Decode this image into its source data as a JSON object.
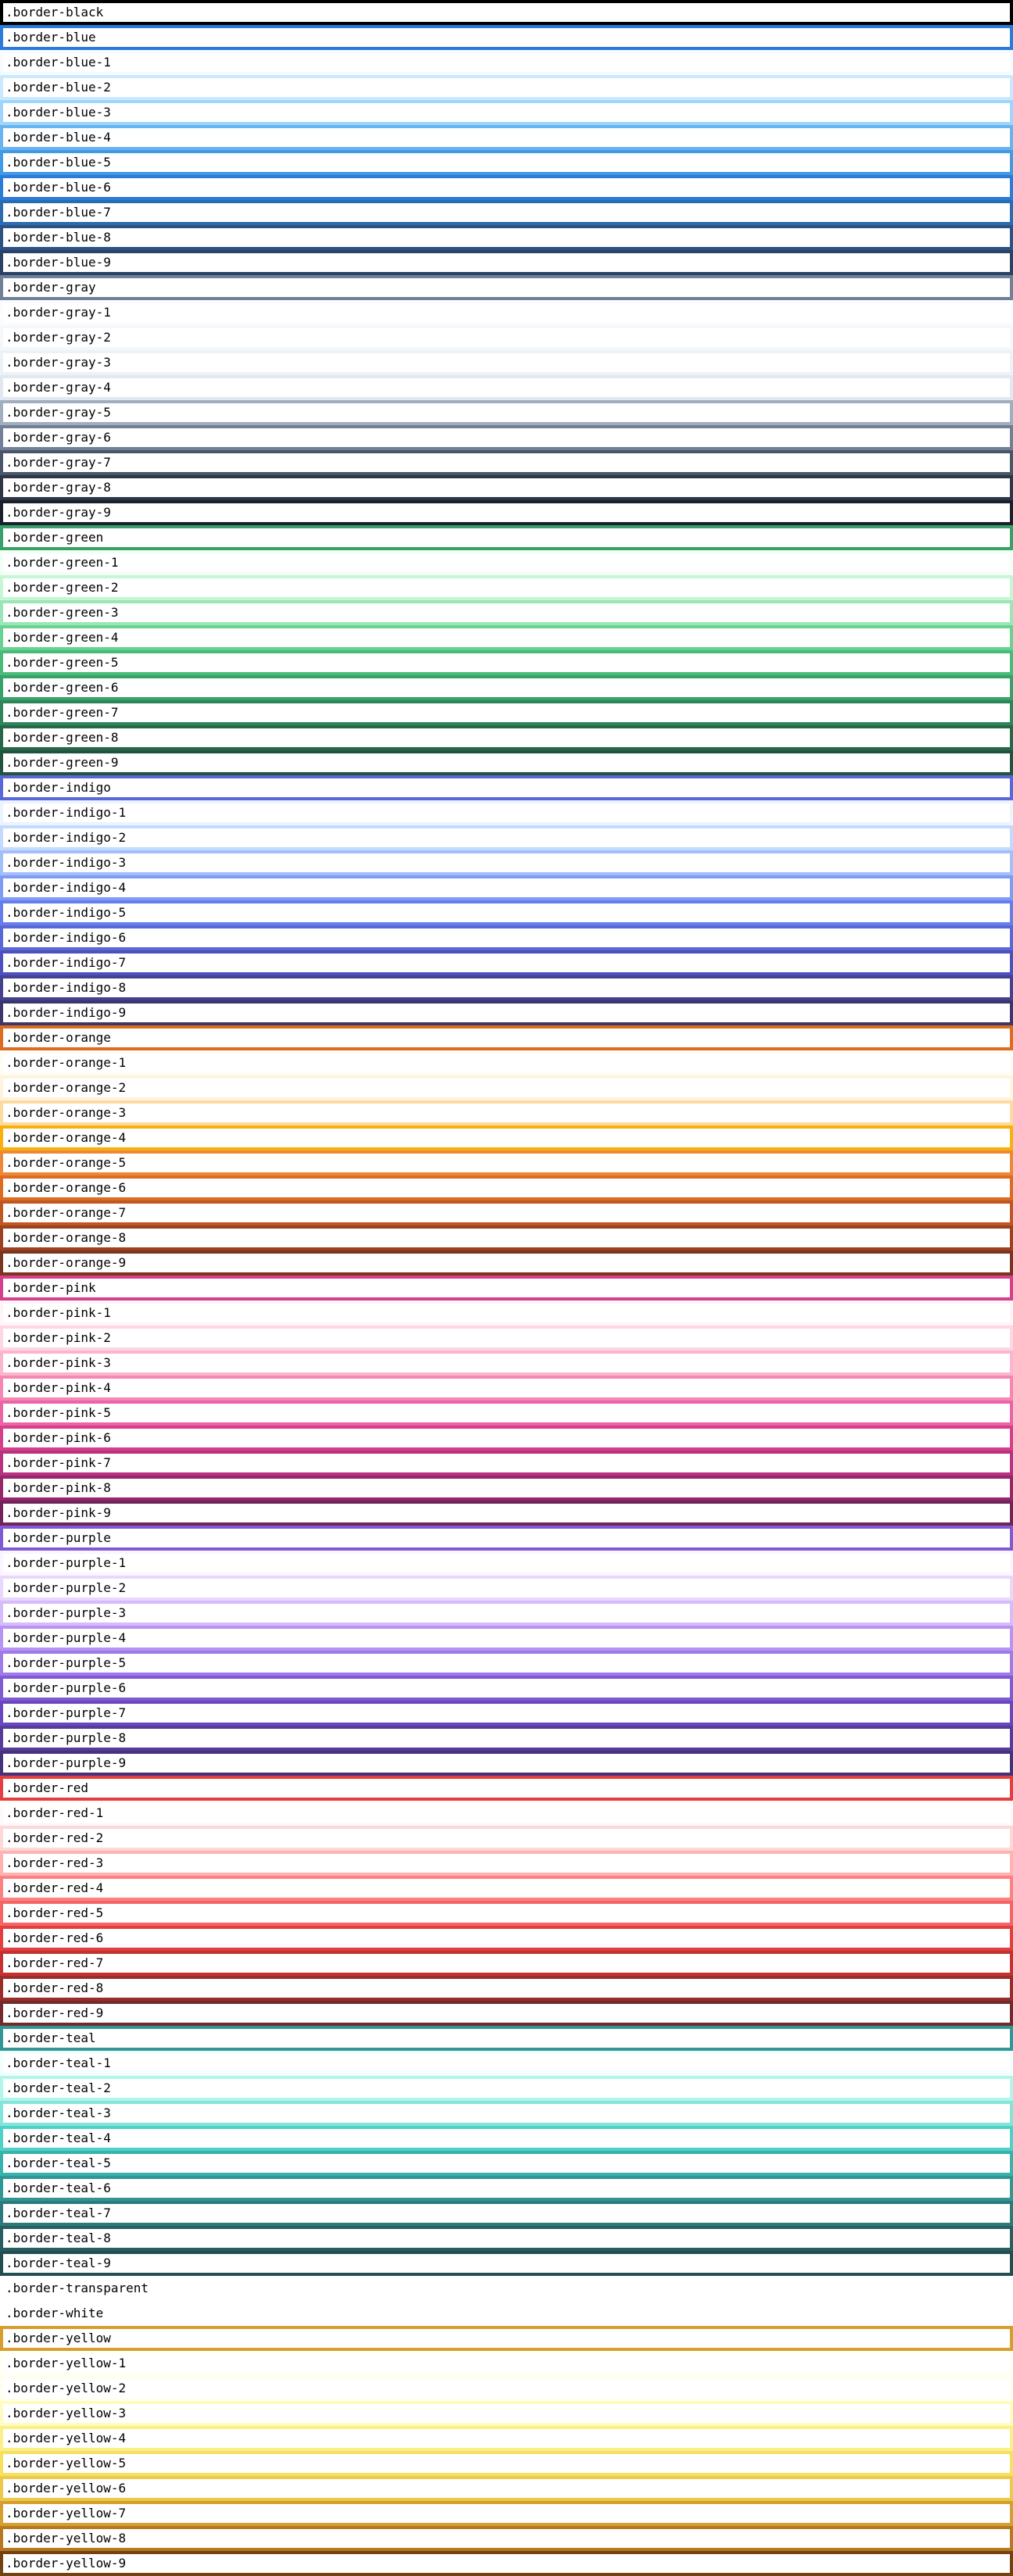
{
  "items": [
    {
      "label": ".border-black",
      "color": "#000000"
    },
    {
      "label": ".border-blue",
      "color": "#2b7bdb"
    },
    {
      "label": ".border-blue-1",
      "color": "#f5fbff"
    },
    {
      "label": ".border-blue-2",
      "color": "#cbe9fe"
    },
    {
      "label": ".border-blue-3",
      "color": "#9fd5fc"
    },
    {
      "label": ".border-blue-4",
      "color": "#69b4ef"
    },
    {
      "label": ".border-blue-5",
      "color": "#4299e4"
    },
    {
      "label": ".border-blue-6",
      "color": "#2b7bdb"
    },
    {
      "label": ".border-blue-7",
      "color": "#2b6bb0"
    },
    {
      "label": ".border-blue-8",
      "color": "#2c5283"
    },
    {
      "label": ".border-blue-9",
      "color": "#2a4365"
    },
    {
      "label": ".border-gray",
      "color": "#718096"
    },
    {
      "label": ".border-gray-1",
      "color": "#fbfcfd"
    },
    {
      "label": ".border-gray-2",
      "color": "#f5f7fa"
    },
    {
      "label": ".border-gray-3",
      "color": "#edf2f7"
    },
    {
      "label": ".border-gray-4",
      "color": "#e2e8f0"
    },
    {
      "label": ".border-gray-5",
      "color": "#a0aec0"
    },
    {
      "label": ".border-gray-6",
      "color": "#718096"
    },
    {
      "label": ".border-gray-7",
      "color": "#4a5568"
    },
    {
      "label": ".border-gray-8",
      "color": "#2d3748"
    },
    {
      "label": ".border-gray-9",
      "color": "#1a202c"
    },
    {
      "label": ".border-green",
      "color": "#38a169"
    },
    {
      "label": ".border-green-1",
      "color": "#f1fff4"
    },
    {
      "label": ".border-green-2",
      "color": "#c6f6d5"
    },
    {
      "label": ".border-green-3",
      "color": "#9ae6b4"
    },
    {
      "label": ".border-green-4",
      "color": "#68d391"
    },
    {
      "label": ".border-green-5",
      "color": "#48bb78"
    },
    {
      "label": ".border-green-6",
      "color": "#38a169"
    },
    {
      "label": ".border-green-7",
      "color": "#2f855a"
    },
    {
      "label": ".border-green-8",
      "color": "#276749"
    },
    {
      "label": ".border-green-9",
      "color": "#22543d"
    },
    {
      "label": ".border-indigo",
      "color": "#5a67d8"
    },
    {
      "label": ".border-indigo-1",
      "color": "#ebf4ff"
    },
    {
      "label": ".border-indigo-2",
      "color": "#c3dafe"
    },
    {
      "label": ".border-indigo-3",
      "color": "#a3bffa"
    },
    {
      "label": ".border-indigo-4",
      "color": "#7f9cf5"
    },
    {
      "label": ".border-indigo-5",
      "color": "#667eea"
    },
    {
      "label": ".border-indigo-6",
      "color": "#5a67d8"
    },
    {
      "label": ".border-indigo-7",
      "color": "#4c51bf"
    },
    {
      "label": ".border-indigo-8",
      "color": "#434190"
    },
    {
      "label": ".border-indigo-9",
      "color": "#3c366b"
    },
    {
      "label": ".border-orange",
      "color": "#dd6b20"
    },
    {
      "label": ".border-orange-1",
      "color": "#fffcf5"
    },
    {
      "label": ".border-orange-2",
      "color": "#fef3dd"
    },
    {
      "label": ".border-orange-3",
      "color": "#fddaa0"
    },
    {
      "label": ".border-orange-4",
      "color": "#f9b00a"
    },
    {
      "label": ".border-orange-5",
      "color": "#ed8936"
    },
    {
      "label": ".border-orange-6",
      "color": "#dd6b20"
    },
    {
      "label": ".border-orange-7",
      "color": "#c05621"
    },
    {
      "label": ".border-orange-8",
      "color": "#9c4221"
    },
    {
      "label": ".border-orange-9",
      "color": "#7b341e"
    },
    {
      "label": ".border-pink",
      "color": "#d53f8c"
    },
    {
      "label": ".border-pink-1",
      "color": "#fff5f7"
    },
    {
      "label": ".border-pink-2",
      "color": "#fed7e2"
    },
    {
      "label": ".border-pink-3",
      "color": "#fbb6ce"
    },
    {
      "label": ".border-pink-4",
      "color": "#f687b3"
    },
    {
      "label": ".border-pink-5",
      "color": "#ed64a6"
    },
    {
      "label": ".border-pink-6",
      "color": "#d53f8c"
    },
    {
      "label": ".border-pink-7",
      "color": "#b83280"
    },
    {
      "label": ".border-pink-8",
      "color": "#97266d"
    },
    {
      "label": ".border-pink-9",
      "color": "#702459"
    },
    {
      "label": ".border-purple",
      "color": "#805ad5"
    },
    {
      "label": ".border-purple-1",
      "color": "#faf5ff"
    },
    {
      "label": ".border-purple-2",
      "color": "#e9d8fd"
    },
    {
      "label": ".border-purple-3",
      "color": "#d6bcfa"
    },
    {
      "label": ".border-purple-4",
      "color": "#b794f4"
    },
    {
      "label": ".border-purple-5",
      "color": "#9f7aea"
    },
    {
      "label": ".border-purple-6",
      "color": "#805ad5"
    },
    {
      "label": ".border-purple-7",
      "color": "#6b46c1"
    },
    {
      "label": ".border-purple-8",
      "color": "#553c9a"
    },
    {
      "label": ".border-purple-9",
      "color": "#44337a"
    },
    {
      "label": ".border-red",
      "color": "#e53e3e"
    },
    {
      "label": ".border-red-1",
      "color": "#fffafa"
    },
    {
      "label": ".border-red-2",
      "color": "#fed7d7"
    },
    {
      "label": ".border-red-3",
      "color": "#feb2b2"
    },
    {
      "label": ".border-red-4",
      "color": "#fc8181"
    },
    {
      "label": ".border-red-5",
      "color": "#f56565"
    },
    {
      "label": ".border-red-6",
      "color": "#e53e3e"
    },
    {
      "label": ".border-red-7",
      "color": "#c53030"
    },
    {
      "label": ".border-red-8",
      "color": "#9b2c2c"
    },
    {
      "label": ".border-red-9",
      "color": "#742a2a"
    },
    {
      "label": ".border-teal",
      "color": "#319795"
    },
    {
      "label": ".border-teal-1",
      "color": "#f0fffe"
    },
    {
      "label": ".border-teal-2",
      "color": "#b2f5ea"
    },
    {
      "label": ".border-teal-3",
      "color": "#81e6d9"
    },
    {
      "label": ".border-teal-4",
      "color": "#4fd1c5"
    },
    {
      "label": ".border-teal-5",
      "color": "#38b2ac"
    },
    {
      "label": ".border-teal-6",
      "color": "#319795"
    },
    {
      "label": ".border-teal-7",
      "color": "#2c7a7b"
    },
    {
      "label": ".border-teal-8",
      "color": "#285e61"
    },
    {
      "label": ".border-teal-9",
      "color": "#234e52"
    },
    {
      "label": ".border-transparent",
      "color": "transparent"
    },
    {
      "label": ".border-white",
      "color": "#ffffff"
    },
    {
      "label": ".border-yellow",
      "color": "#d69e2e"
    },
    {
      "label": ".border-yellow-1",
      "color": "#fffff5"
    },
    {
      "label": ".border-yellow-2",
      "color": "#fffff0"
    },
    {
      "label": ".border-yellow-3",
      "color": "#fefcbf"
    },
    {
      "label": ".border-yellow-4",
      "color": "#faf089"
    },
    {
      "label": ".border-yellow-5",
      "color": "#f6e05e"
    },
    {
      "label": ".border-yellow-6",
      "color": "#ecc94b"
    },
    {
      "label": ".border-yellow-7",
      "color": "#d69e2e"
    },
    {
      "label": ".border-yellow-8",
      "color": "#b7791f"
    },
    {
      "label": ".border-yellow-9",
      "color": "#744210"
    }
  ]
}
